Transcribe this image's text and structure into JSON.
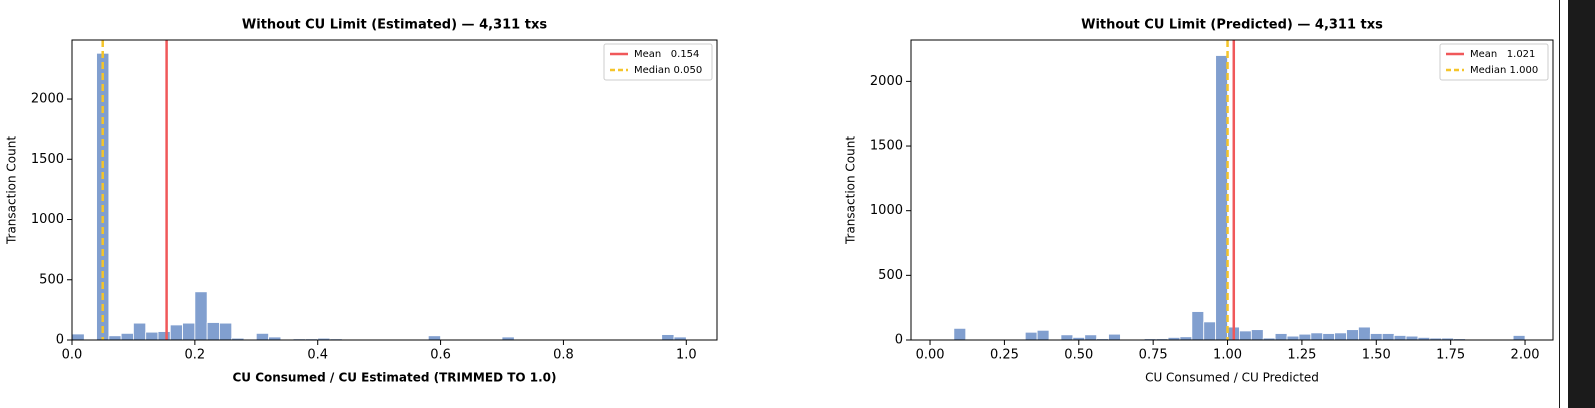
{
  "chart_data": [
    {
      "type": "histogram",
      "title": "Without CU Limit (Estimated) — 4,311 txs",
      "xlabel": "CU Consumed / CU Estimated (TRIMMED TO 1.0)",
      "xlabel_weight": "bold",
      "ylabel": "Transaction Count",
      "color": "#819fcf",
      "bins": [
        0,
        0.02,
        0.04,
        0.06,
        0.08,
        0.1,
        0.12,
        0.14,
        0.16,
        0.18,
        0.2,
        0.22,
        0.24,
        0.26,
        0.28,
        0.3,
        0.32,
        0.34,
        0.36,
        0.38,
        0.4,
        0.42,
        0.44,
        0.46,
        0.48,
        0.5,
        0.52,
        0.54,
        0.56,
        0.58,
        0.6,
        0.62,
        0.64,
        0.66,
        0.68,
        0.7,
        0.72,
        0.74,
        0.76,
        0.78,
        0.8,
        0.82,
        0.84,
        0.86,
        0.88,
        0.9,
        0.92,
        0.94,
        0.96,
        0.98,
        1.0
      ],
      "values": [
        50,
        3,
        2380,
        35,
        55,
        140,
        65,
        70,
        125,
        140,
        400,
        145,
        140,
        15,
        5,
        55,
        25,
        5,
        10,
        10,
        15,
        10,
        3,
        3,
        3,
        3,
        3,
        3,
        3,
        35,
        3,
        3,
        3,
        3,
        3,
        25,
        3,
        3,
        3,
        3,
        3,
        3,
        3,
        3,
        3,
        3,
        3,
        3,
        45,
        25
      ],
      "xlim": [
        0,
        1.05
      ],
      "ylim": [
        0,
        2490
      ],
      "xticks": [
        {
          "value": 0,
          "label": "0.0"
        },
        0.2,
        0.4,
        0.6,
        0.8,
        {
          "value": 1,
          "label": "1.0"
        }
      ],
      "yticks": [
        0,
        500,
        1000,
        1500,
        2000
      ],
      "lines": [
        {
          "name": "Mean   0.154",
          "value": 0.154,
          "color": "#f0585a",
          "dash": "solid"
        },
        {
          "name": "Median 0.050",
          "value": 0.05,
          "color": "#f5c52a",
          "dash": "dashed"
        }
      ],
      "legend": "upper right"
    },
    {
      "type": "histogram",
      "title": "Without CU Limit (Predicted) — 4,311 txs",
      "xlabel": "CU Consumed / CU Predicted",
      "xlabel_weight": "normal",
      "ylabel": "Transaction Count",
      "color": "#819fcf",
      "bins": [
        0,
        0.04,
        0.08,
        0.12,
        0.16,
        0.2,
        0.24,
        0.28,
        0.32,
        0.36,
        0.4,
        0.44,
        0.48,
        0.52,
        0.56,
        0.6,
        0.64,
        0.68,
        0.72,
        0.76,
        0.8,
        0.84,
        0.88,
        0.92,
        0.96,
        1.0,
        1.04,
        1.08,
        1.12,
        1.16,
        1.2,
        1.24,
        1.28,
        1.32,
        1.36,
        1.4,
        1.44,
        1.48,
        1.52,
        1.56,
        1.6,
        1.64,
        1.68,
        1.72,
        1.76,
        1.8,
        1.84,
        1.88,
        1.92,
        1.96,
        2.0
      ],
      "values": [
        3,
        3,
        90,
        5,
        3,
        3,
        3,
        3,
        60,
        75,
        5,
        40,
        20,
        40,
        10,
        45,
        5,
        5,
        10,
        10,
        20,
        25,
        220,
        140,
        2200,
        100,
        70,
        80,
        15,
        50,
        30,
        45,
        55,
        50,
        55,
        80,
        100,
        50,
        50,
        35,
        30,
        20,
        15,
        15,
        10,
        3,
        3,
        3,
        3,
        35
      ],
      "xlim": [
        -0.064,
        2.094
      ],
      "ylim": [
        0,
        2320
      ],
      "xticks": [
        {
          "value": 0,
          "label": "0.00"
        },
        0.25,
        {
          "value": 0.5,
          "label": "0.50"
        },
        0.75,
        {
          "value": 1,
          "label": "1.00"
        },
        1.25,
        {
          "value": 1.5,
          "label": "1.50"
        },
        1.75,
        {
          "value": 2,
          "label": "2.00"
        }
      ],
      "yticks": [
        0,
        500,
        1000,
        1500,
        2000
      ],
      "lines": [
        {
          "name": "Mean   1.021",
          "value": 1.021,
          "color": "#f0585a",
          "dash": "solid"
        },
        {
          "name": "Median 1.000",
          "value": 1.0,
          "color": "#f5c52a",
          "dash": "dashed"
        }
      ],
      "legend": "upper right"
    }
  ]
}
